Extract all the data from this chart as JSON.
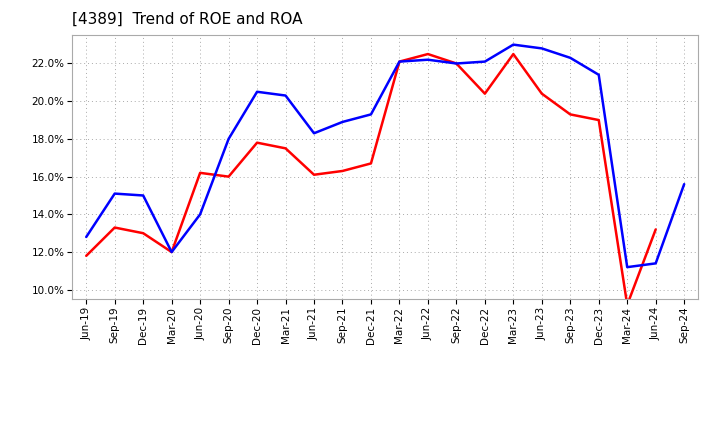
{
  "title": "[4389]  Trend of ROE and ROA",
  "x_labels": [
    "Jun-19",
    "Sep-19",
    "Dec-19",
    "Mar-20",
    "Jun-20",
    "Sep-20",
    "Dec-20",
    "Mar-21",
    "Jun-21",
    "Sep-21",
    "Dec-21",
    "Mar-22",
    "Jun-22",
    "Sep-22",
    "Dec-22",
    "Mar-23",
    "Jun-23",
    "Sep-23",
    "Dec-23",
    "Mar-24",
    "Jun-24",
    "Sep-24"
  ],
  "roe": [
    11.8,
    13.3,
    13.0,
    12.0,
    16.2,
    16.0,
    17.8,
    17.5,
    16.1,
    16.3,
    16.7,
    22.1,
    22.5,
    22.0,
    20.4,
    22.5,
    20.4,
    19.3,
    19.0,
    9.2,
    13.2,
    null
  ],
  "roa": [
    12.8,
    15.1,
    15.0,
    12.0,
    14.0,
    18.0,
    20.5,
    20.3,
    18.3,
    18.9,
    19.3,
    22.1,
    22.2,
    22.0,
    22.1,
    23.0,
    22.8,
    22.3,
    21.4,
    11.2,
    11.4,
    15.6
  ],
  "roe_color": "#ff0000",
  "roa_color": "#0000ff",
  "background_color": "#ffffff",
  "plot_bg_color": "#ffffff",
  "grid_color": "#aaaaaa",
  "ylim": [
    9.5,
    23.5
  ],
  "yticks": [
    10.0,
    12.0,
    14.0,
    16.0,
    18.0,
    20.0,
    22.0
  ],
  "title_fontsize": 11,
  "tick_fontsize": 7.5,
  "legend_fontsize": 9,
  "line_width": 1.8
}
